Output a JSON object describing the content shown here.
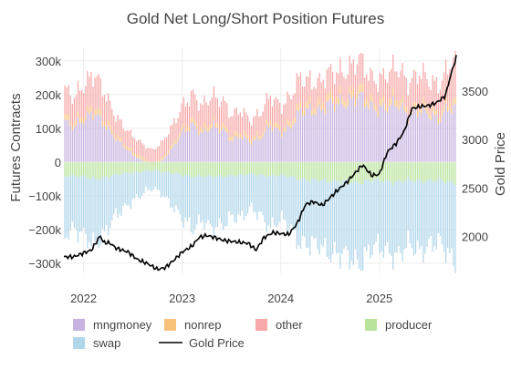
{
  "chart_data": {
    "type": "bar",
    "title": "Gold Net Long/Short Position Futures",
    "ylabel": "Futures Contracts",
    "y2label": "Gold Price",
    "ylim": [
      -330000,
      340000
    ],
    "y2lim": [
      1620,
      3950
    ],
    "y_ticks": [
      -300000,
      -200000,
      -100000,
      0,
      100000,
      200000,
      300000
    ],
    "y_tick_labels": [
      "−300k",
      "−200k",
      "−100k",
      "0",
      "100k",
      "200k",
      "300k"
    ],
    "y2_ticks": [
      2000,
      2500,
      3000,
      3500
    ],
    "y2_tick_labels": [
      "2000",
      "2500",
      "3000",
      "3500"
    ],
    "x_range": [
      2021.8,
      2025.78
    ],
    "x_ticks": [
      2022,
      2023,
      2024,
      2025
    ],
    "x_tick_labels": [
      "2022",
      "2023",
      "2024",
      "2025"
    ],
    "legend_position": "bottom",
    "grid": true,
    "x_anchors": [
      2021.8,
      2021.9,
      2022.0,
      2022.1,
      2022.2,
      2022.3,
      2022.4,
      2022.5,
      2022.6,
      2022.7,
      2022.8,
      2022.9,
      2023.0,
      2023.1,
      2023.2,
      2023.3,
      2023.4,
      2023.5,
      2023.6,
      2023.7,
      2023.8,
      2023.9,
      2024.0,
      2024.1,
      2024.2,
      2024.3,
      2024.4,
      2024.5,
      2024.6,
      2024.7,
      2024.8,
      2024.9,
      2025.0,
      2025.1,
      2025.2,
      2025.3,
      2025.4,
      2025.5,
      2025.6,
      2025.7,
      2025.78
    ],
    "series": [
      {
        "name": "mngmoney",
        "color": "#c7b3e0",
        "values": [
          120000,
          100000,
          130000,
          150000,
          110000,
          80000,
          50000,
          20000,
          5000,
          -10000,
          5000,
          40000,
          90000,
          110000,
          80000,
          110000,
          100000,
          60000,
          80000,
          60000,
          70000,
          110000,
          90000,
          100000,
          150000,
          160000,
          150000,
          170000,
          180000,
          180000,
          190000,
          170000,
          160000,
          160000,
          170000,
          140000,
          150000,
          140000,
          130000,
          160000,
          150000
        ]
      },
      {
        "name": "nonrep",
        "color": "#f9c27a",
        "values": [
          15000,
          14000,
          16000,
          18000,
          15000,
          13000,
          11000,
          9000,
          8000,
          7000,
          8000,
          10000,
          13000,
          15000,
          13000,
          15000,
          14000,
          12000,
          13000,
          12000,
          12000,
          14000,
          13000,
          14000,
          18000,
          20000,
          19000,
          20000,
          21000,
          21000,
          22000,
          20000,
          19000,
          19000,
          20000,
          18000,
          19000,
          18000,
          17000,
          19000,
          19000
        ]
      },
      {
        "name": "other",
        "color": "#f7a8a8",
        "values": [
          80000,
          70000,
          90000,
          100000,
          80000,
          60000,
          50000,
          45000,
          40000,
          40000,
          45000,
          55000,
          70000,
          75000,
          65000,
          80000,
          75000,
          60000,
          65000,
          55000,
          60000,
          75000,
          70000,
          75000,
          80000,
          70000,
          65000,
          70000,
          75000,
          80000,
          85000,
          70000,
          70000,
          80000,
          90000,
          85000,
          90000,
          80000,
          90000,
          100000,
          120000
        ]
      },
      {
        "name": "producer",
        "color": "#b9e29a",
        "values": [
          -40000,
          -40000,
          -45000,
          -50000,
          -45000,
          -40000,
          -35000,
          -30000,
          -28000,
          -25000,
          -28000,
          -32000,
          -40000,
          -42000,
          -40000,
          -45000,
          -43000,
          -38000,
          -40000,
          -36000,
          -38000,
          -42000,
          -40000,
          -42000,
          -50000,
          -55000,
          -53000,
          -55000,
          -58000,
          -58000,
          -60000,
          -55000,
          -55000,
          -56000,
          -58000,
          -55000,
          -56000,
          -54000,
          -55000,
          -58000,
          -60000
        ]
      },
      {
        "name": "swap",
        "color": "#b0d6ea",
        "values": [
          -175000,
          -150000,
          -180000,
          -200000,
          -165000,
          -130000,
          -110000,
          -80000,
          -65000,
          -55000,
          -65000,
          -95000,
          -135000,
          -155000,
          -125000,
          -160000,
          -150000,
          -115000,
          -130000,
          -105000,
          -115000,
          -155000,
          -135000,
          -145000,
          -190000,
          -200000,
          -190000,
          -210000,
          -225000,
          -225000,
          -235000,
          -210000,
          -200000,
          -205000,
          -220000,
          -195000,
          -205000,
          -190000,
          -190000,
          -215000,
          -230000
        ]
      }
    ],
    "line": {
      "name": "Gold Price",
      "color": "#000000",
      "x": [
        2021.8,
        2021.9,
        2022.0,
        2022.08,
        2022.17,
        2022.2,
        2022.27,
        2022.33,
        2022.45,
        2022.55,
        2022.65,
        2022.75,
        2022.83,
        2022.92,
        2023.0,
        2023.1,
        2023.17,
        2023.25,
        2023.33,
        2023.42,
        2023.5,
        2023.58,
        2023.67,
        2023.75,
        2023.83,
        2023.92,
        2024.0,
        2024.08,
        2024.17,
        2024.25,
        2024.33,
        2024.42,
        2024.5,
        2024.58,
        2024.67,
        2024.75,
        2024.83,
        2024.92,
        2025.0,
        2025.08,
        2025.17,
        2025.25,
        2025.33,
        2025.42,
        2025.5,
        2025.58,
        2025.67,
        2025.72,
        2025.78
      ],
      "values": [
        1790,
        1790,
        1830,
        1860,
        2010,
        1940,
        1930,
        1880,
        1840,
        1760,
        1720,
        1660,
        1680,
        1760,
        1840,
        1900,
        1990,
        2010,
        1990,
        1960,
        1950,
        1940,
        1930,
        1860,
        1990,
        2040,
        2030,
        2020,
        2140,
        2330,
        2360,
        2320,
        2400,
        2480,
        2560,
        2650,
        2740,
        2630,
        2640,
        2870,
        2960,
        3080,
        3320,
        3340,
        3350,
        3380,
        3450,
        3650,
        3850
      ]
    }
  }
}
